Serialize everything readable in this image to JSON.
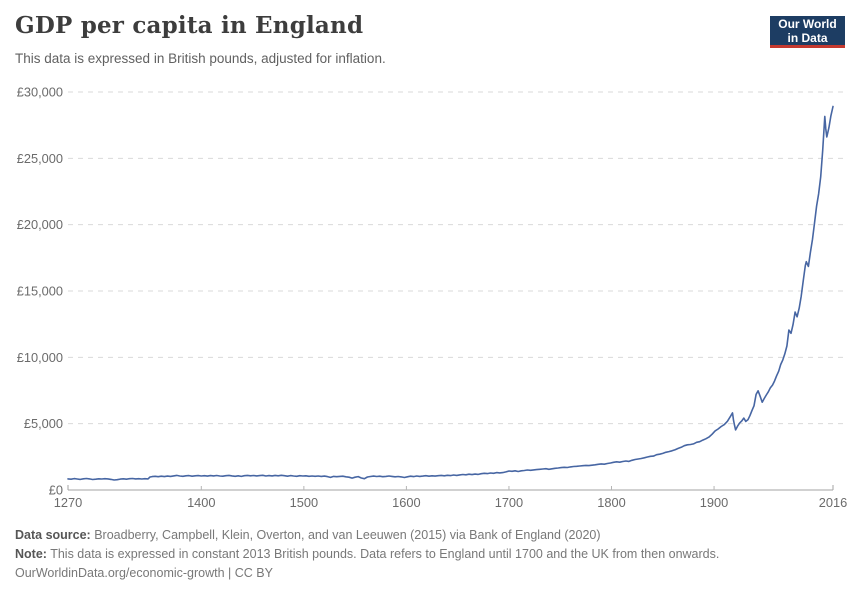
{
  "header": {
    "title": "GDP per capita in England",
    "subtitle": "This data is expressed in British pounds, adjusted for inflation.",
    "logo": {
      "line1": "Our World",
      "line2": "in Data",
      "bg_color": "#1d3d63",
      "accent_color": "#c5392f"
    }
  },
  "chart_data": {
    "type": "line",
    "title": "GDP per capita in England",
    "xlabel": "",
    "ylabel": "",
    "xlim": [
      1270,
      2016
    ],
    "ylim": [
      0,
      30000
    ],
    "x_ticks": [
      1270,
      1400,
      1500,
      1600,
      1700,
      1800,
      1900,
      2016
    ],
    "y_ticks": [
      0,
      5000,
      10000,
      15000,
      20000,
      25000,
      30000
    ],
    "y_tick_prefix": "£",
    "grid": "horizontal-dashed",
    "legend": "none",
    "line_color": "#4766a3",
    "grid_color": "#dadada",
    "axis_color": "#a3a3a3",
    "tick_color": "#b5b5b5",
    "axis_text_color": "#6b6b6b",
    "series": [
      {
        "name": "England",
        "points": [
          [
            1270,
            840
          ],
          [
            1273,
            812
          ],
          [
            1276,
            856
          ],
          [
            1279,
            826
          ],
          [
            1282,
            800
          ],
          [
            1285,
            846
          ],
          [
            1288,
            868
          ],
          [
            1291,
            838
          ],
          [
            1294,
            792
          ],
          [
            1297,
            812
          ],
          [
            1300,
            846
          ],
          [
            1303,
            826
          ],
          [
            1306,
            854
          ],
          [
            1309,
            834
          ],
          [
            1312,
            798
          ],
          [
            1315,
            756
          ],
          [
            1318,
            776
          ],
          [
            1321,
            820
          ],
          [
            1324,
            846
          ],
          [
            1327,
            816
          ],
          [
            1330,
            850
          ],
          [
            1333,
            868
          ],
          [
            1336,
            836
          ],
          [
            1339,
            854
          ],
          [
            1342,
            826
          ],
          [
            1345,
            850
          ],
          [
            1348,
            834
          ],
          [
            1350,
            980
          ],
          [
            1352,
            1012
          ],
          [
            1355,
            1034
          ],
          [
            1358,
            1002
          ],
          [
            1361,
            1040
          ],
          [
            1364,
            1012
          ],
          [
            1367,
            1048
          ],
          [
            1370,
            1022
          ],
          [
            1373,
            1062
          ],
          [
            1376,
            1098
          ],
          [
            1379,
            1058
          ],
          [
            1382,
            1032
          ],
          [
            1385,
            1068
          ],
          [
            1388,
            1088
          ],
          [
            1391,
            1042
          ],
          [
            1394,
            1070
          ],
          [
            1397,
            1088
          ],
          [
            1400,
            1052
          ],
          [
            1403,
            1078
          ],
          [
            1406,
            1050
          ],
          [
            1409,
            1088
          ],
          [
            1412,
            1060
          ],
          [
            1415,
            1090
          ],
          [
            1418,
            1058
          ],
          [
            1421,
            1040
          ],
          [
            1424,
            1078
          ],
          [
            1427,
            1098
          ],
          [
            1430,
            1060
          ],
          [
            1433,
            1032
          ],
          [
            1436,
            1068
          ],
          [
            1439,
            1022
          ],
          [
            1442,
            1078
          ],
          [
            1445,
            1098
          ],
          [
            1448,
            1068
          ],
          [
            1451,
            1096
          ],
          [
            1454,
            1060
          ],
          [
            1457,
            1088
          ],
          [
            1460,
            1108
          ],
          [
            1463,
            1052
          ],
          [
            1466,
            1088
          ],
          [
            1469,
            1062
          ],
          [
            1472,
            1098
          ],
          [
            1475,
            1072
          ],
          [
            1478,
            1108
          ],
          [
            1481,
            1078
          ],
          [
            1484,
            1042
          ],
          [
            1487,
            1088
          ],
          [
            1490,
            1058
          ],
          [
            1493,
            1032
          ],
          [
            1496,
            1078
          ],
          [
            1499,
            1052
          ],
          [
            1502,
            1072
          ],
          [
            1505,
            1032
          ],
          [
            1508,
            1058
          ],
          [
            1511,
            1030
          ],
          [
            1514,
            1058
          ],
          [
            1517,
            1022
          ],
          [
            1520,
            1048
          ],
          [
            1523,
            1008
          ],
          [
            1526,
            950
          ],
          [
            1529,
            1028
          ],
          [
            1532,
            1000
          ],
          [
            1535,
            1022
          ],
          [
            1538,
            1040
          ],
          [
            1541,
            998
          ],
          [
            1544,
            968
          ],
          [
            1547,
            900
          ],
          [
            1550,
            968
          ],
          [
            1553,
            1008
          ],
          [
            1556,
            908
          ],
          [
            1559,
            852
          ],
          [
            1562,
            978
          ],
          [
            1565,
            1018
          ],
          [
            1568,
            1048
          ],
          [
            1571,
            1018
          ],
          [
            1574,
            1040
          ],
          [
            1577,
            1000
          ],
          [
            1580,
            1028
          ],
          [
            1583,
            1058
          ],
          [
            1586,
            1028
          ],
          [
            1589,
            998
          ],
          [
            1592,
            1018
          ],
          [
            1595,
            988
          ],
          [
            1598,
            942
          ],
          [
            1601,
            996
          ],
          [
            1604,
            1038
          ],
          [
            1607,
            1008
          ],
          [
            1610,
            1056
          ],
          [
            1613,
            1028
          ],
          [
            1616,
            1048
          ],
          [
            1619,
            1078
          ],
          [
            1622,
            1038
          ],
          [
            1625,
            1068
          ],
          [
            1628,
            1048
          ],
          [
            1631,
            1078
          ],
          [
            1634,
            1098
          ],
          [
            1637,
            1068
          ],
          [
            1640,
            1108
          ],
          [
            1643,
            1088
          ],
          [
            1646,
            1128
          ],
          [
            1649,
            1098
          ],
          [
            1652,
            1138
          ],
          [
            1655,
            1168
          ],
          [
            1658,
            1148
          ],
          [
            1661,
            1188
          ],
          [
            1664,
            1158
          ],
          [
            1667,
            1198
          ],
          [
            1670,
            1178
          ],
          [
            1673,
            1228
          ],
          [
            1676,
            1258
          ],
          [
            1679,
            1238
          ],
          [
            1682,
            1278
          ],
          [
            1685,
            1258
          ],
          [
            1688,
            1308
          ],
          [
            1691,
            1288
          ],
          [
            1694,
            1308
          ],
          [
            1697,
            1368
          ],
          [
            1700,
            1430
          ],
          [
            1703,
            1412
          ],
          [
            1706,
            1444
          ],
          [
            1709,
            1398
          ],
          [
            1712,
            1446
          ],
          [
            1715,
            1468
          ],
          [
            1718,
            1506
          ],
          [
            1721,
            1488
          ],
          [
            1724,
            1518
          ],
          [
            1727,
            1538
          ],
          [
            1730,
            1558
          ],
          [
            1733,
            1582
          ],
          [
            1736,
            1608
          ],
          [
            1739,
            1558
          ],
          [
            1742,
            1598
          ],
          [
            1745,
            1638
          ],
          [
            1748,
            1658
          ],
          [
            1751,
            1688
          ],
          [
            1754,
            1708
          ],
          [
            1757,
            1698
          ],
          [
            1760,
            1738
          ],
          [
            1763,
            1768
          ],
          [
            1766,
            1788
          ],
          [
            1769,
            1808
          ],
          [
            1772,
            1828
          ],
          [
            1775,
            1858
          ],
          [
            1778,
            1838
          ],
          [
            1781,
            1868
          ],
          [
            1784,
            1898
          ],
          [
            1787,
            1938
          ],
          [
            1790,
            1968
          ],
          [
            1793,
            1948
          ],
          [
            1796,
            1998
          ],
          [
            1799,
            2038
          ],
          [
            1802,
            2088
          ],
          [
            1805,
            2128
          ],
          [
            1808,
            2098
          ],
          [
            1811,
            2148
          ],
          [
            1814,
            2188
          ],
          [
            1817,
            2158
          ],
          [
            1820,
            2238
          ],
          [
            1823,
            2298
          ],
          [
            1826,
            2338
          ],
          [
            1829,
            2378
          ],
          [
            1832,
            2428
          ],
          [
            1835,
            2488
          ],
          [
            1838,
            2538
          ],
          [
            1841,
            2558
          ],
          [
            1844,
            2658
          ],
          [
            1847,
            2698
          ],
          [
            1850,
            2758
          ],
          [
            1853,
            2838
          ],
          [
            1856,
            2898
          ],
          [
            1859,
            2958
          ],
          [
            1862,
            3038
          ],
          [
            1865,
            3138
          ],
          [
            1868,
            3218
          ],
          [
            1871,
            3338
          ],
          [
            1874,
            3408
          ],
          [
            1877,
            3428
          ],
          [
            1880,
            3478
          ],
          [
            1883,
            3598
          ],
          [
            1886,
            3638
          ],
          [
            1889,
            3758
          ],
          [
            1892,
            3858
          ],
          [
            1895,
            3988
          ],
          [
            1898,
            4198
          ],
          [
            1901,
            4458
          ],
          [
            1904,
            4598
          ],
          [
            1907,
            4788
          ],
          [
            1910,
            4928
          ],
          [
            1913,
            5178
          ],
          [
            1916,
            5558
          ],
          [
            1918,
            5808
          ],
          [
            1919,
            5258
          ],
          [
            1920,
            4858
          ],
          [
            1921,
            4528
          ],
          [
            1923,
            4818
          ],
          [
            1925,
            5058
          ],
          [
            1927,
            5198
          ],
          [
            1929,
            5418
          ],
          [
            1931,
            5168
          ],
          [
            1933,
            5288
          ],
          [
            1935,
            5598
          ],
          [
            1937,
            5998
          ],
          [
            1939,
            6348
          ],
          [
            1941,
            7208
          ],
          [
            1943,
            7478
          ],
          [
            1945,
            7058
          ],
          [
            1947,
            6618
          ],
          [
            1949,
            6908
          ],
          [
            1951,
            7158
          ],
          [
            1953,
            7408
          ],
          [
            1955,
            7708
          ],
          [
            1957,
            7908
          ],
          [
            1959,
            8208
          ],
          [
            1961,
            8608
          ],
          [
            1963,
            8958
          ],
          [
            1965,
            9458
          ],
          [
            1967,
            9808
          ],
          [
            1969,
            10258
          ],
          [
            1971,
            10858
          ],
          [
            1973,
            12058
          ],
          [
            1975,
            11808
          ],
          [
            1977,
            12458
          ],
          [
            1979,
            13408
          ],
          [
            1981,
            13058
          ],
          [
            1983,
            13708
          ],
          [
            1985,
            14608
          ],
          [
            1987,
            15808
          ],
          [
            1989,
            16908
          ],
          [
            1990,
            17208
          ],
          [
            1992,
            16858
          ],
          [
            1994,
            17908
          ],
          [
            1996,
            18908
          ],
          [
            1998,
            20108
          ],
          [
            2000,
            21408
          ],
          [
            2002,
            22308
          ],
          [
            2004,
            23608
          ],
          [
            2006,
            25608
          ],
          [
            2008,
            28158
          ],
          [
            2009,
            27208
          ],
          [
            2010,
            26608
          ],
          [
            2012,
            27308
          ],
          [
            2014,
            28208
          ],
          [
            2016,
            28908
          ]
        ]
      }
    ]
  },
  "footer": {
    "data_source_label": "Data source:",
    "data_source_text": " Broadberry, Campbell, Klein, Overton, and van Leeuwen (2015) via Bank of England (2020)",
    "note_label": "Note:",
    "note_text": " This data is expressed in constant 2013 British pounds. Data refers to England until 1700 and the UK from then onwards.",
    "citation": "OurWorldinData.org/economic-growth | CC BY"
  }
}
